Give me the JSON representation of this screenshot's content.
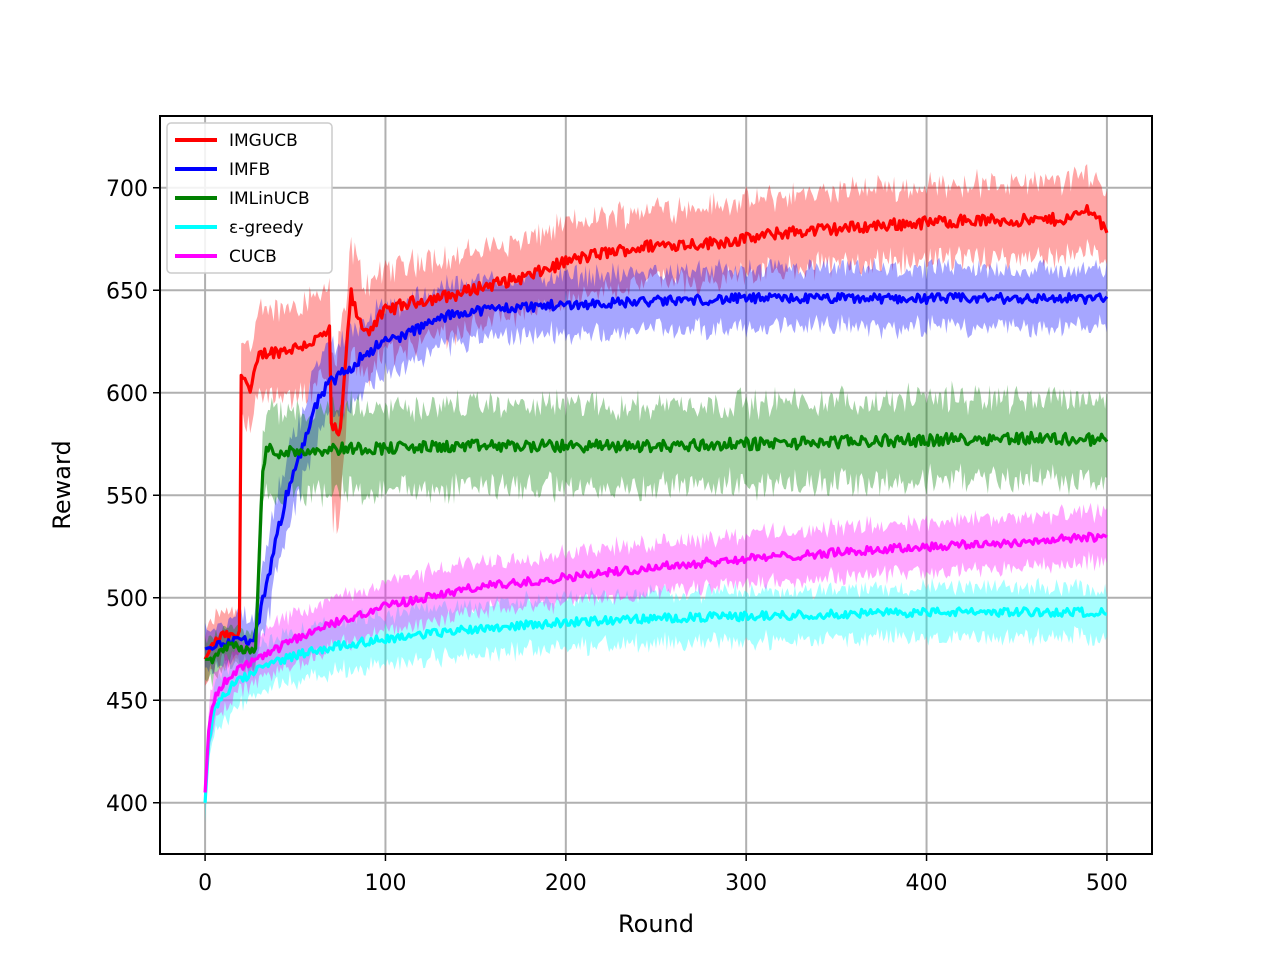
{
  "chart_data": {
    "type": "line",
    "title": "",
    "xlabel": "Round",
    "ylabel": "Reward",
    "xlim": [
      -25,
      525
    ],
    "ylim": [
      375,
      735
    ],
    "xticks": [
      0,
      100,
      200,
      300,
      400,
      500
    ],
    "yticks": [
      400,
      450,
      500,
      550,
      600,
      650,
      700
    ],
    "grid": true,
    "legend_position": "top-left",
    "series": [
      {
        "name": "IMGUCB",
        "color": "#ff0000",
        "band_color": "#ff0000",
        "x": [
          0,
          5,
          10,
          15,
          19,
          20,
          21,
          25,
          30,
          35,
          40,
          50,
          60,
          69,
          70,
          72,
          75,
          80,
          81,
          85,
          90,
          100,
          110,
          120,
          140,
          150,
          160,
          180,
          200,
          220,
          250,
          280,
          300,
          320,
          350,
          380,
          400,
          420,
          440,
          460,
          480,
          490,
          500
        ],
        "y": [
          470,
          478,
          482,
          481,
          482,
          610,
          610,
          600,
          618,
          620,
          620,
          622,
          625,
          630,
          583,
          582,
          580,
          640,
          648,
          635,
          630,
          640,
          643,
          645,
          648,
          651,
          653,
          657,
          664,
          668,
          672,
          673,
          675,
          678,
          680,
          682,
          683,
          684,
          684,
          684,
          685,
          690,
          680
        ],
        "band": [
          12,
          12,
          12,
          12,
          12,
          20,
          20,
          20,
          20,
          20,
          20,
          22,
          22,
          22,
          40,
          40,
          40,
          25,
          25,
          25,
          22,
          20,
          20,
          20,
          18,
          18,
          18,
          18,
          18,
          18,
          18,
          18,
          18,
          18,
          18,
          18,
          18,
          18,
          18,
          18,
          18,
          18,
          18
        ]
      },
      {
        "name": "IMFB",
        "color": "#0000ff",
        "band_color": "#0000ff",
        "x": [
          0,
          10,
          20,
          27,
          30,
          35,
          40,
          45,
          50,
          55,
          60,
          65,
          70,
          80,
          90,
          100,
          110,
          120,
          130,
          140,
          150,
          160,
          180,
          200,
          230,
          260,
          300,
          350,
          400,
          450,
          500
        ],
        "y": [
          475,
          478,
          480,
          478,
          490,
          510,
          530,
          550,
          565,
          575,
          590,
          600,
          605,
          612,
          620,
          625,
          628,
          632,
          636,
          639,
          640,
          641,
          642,
          643,
          644,
          645,
          646,
          646,
          646,
          646,
          646
        ],
        "band": [
          10,
          10,
          12,
          12,
          15,
          18,
          18,
          18,
          18,
          18,
          18,
          18,
          18,
          18,
          17,
          16,
          15,
          15,
          15,
          14,
          14,
          14,
          14,
          14,
          14,
          14,
          14,
          14,
          14,
          14,
          14
        ]
      },
      {
        "name": "IMLinUCB",
        "color": "#008000",
        "band_color": "#008000",
        "x": [
          0,
          5,
          10,
          15,
          20,
          25,
          28,
          30,
          32,
          34,
          40,
          60,
          80,
          100,
          150,
          200,
          250,
          300,
          350,
          400,
          450,
          500
        ],
        "y": [
          470,
          470,
          475,
          478,
          475,
          474,
          475,
          520,
          560,
          573,
          571,
          572,
          573,
          573,
          574,
          574,
          574,
          575,
          576,
          577,
          578,
          577
        ],
        "band": [
          10,
          10,
          10,
          10,
          10,
          10,
          10,
          20,
          20,
          20,
          20,
          20,
          20,
          20,
          20,
          20,
          20,
          20,
          20,
          20,
          20,
          20
        ]
      },
      {
        "name": "ε-greedy",
        "color": "#00ffff",
        "band_color": "#00ffff",
        "x": [
          0,
          2,
          5,
          10,
          15,
          20,
          30,
          40,
          50,
          70,
          100,
          130,
          150,
          200,
          250,
          300,
          350,
          400,
          450,
          500
        ],
        "y": [
          400,
          430,
          445,
          452,
          457,
          460,
          465,
          469,
          472,
          476,
          480,
          483,
          485,
          488,
          490,
          491,
          492,
          493,
          493,
          493
        ],
        "band": [
          8,
          10,
          12,
          12,
          12,
          12,
          12,
          12,
          12,
          12,
          12,
          12,
          12,
          12,
          12,
          12,
          12,
          12,
          12,
          12
        ]
      },
      {
        "name": "CUCB",
        "color": "#ff00ff",
        "band_color": "#ff00ff",
        "x": [
          0,
          2,
          5,
          10,
          15,
          20,
          30,
          40,
          50,
          70,
          100,
          150,
          200,
          250,
          300,
          350,
          400,
          450,
          500
        ],
        "y": [
          405,
          435,
          450,
          458,
          462,
          466,
          470,
          475,
          480,
          487,
          496,
          505,
          510,
          515,
          519,
          522,
          525,
          527,
          530
        ],
        "band": [
          8,
          10,
          12,
          12,
          12,
          12,
          12,
          12,
          12,
          12,
          12,
          12,
          12,
          12,
          12,
          12,
          12,
          12,
          12
        ]
      }
    ]
  }
}
